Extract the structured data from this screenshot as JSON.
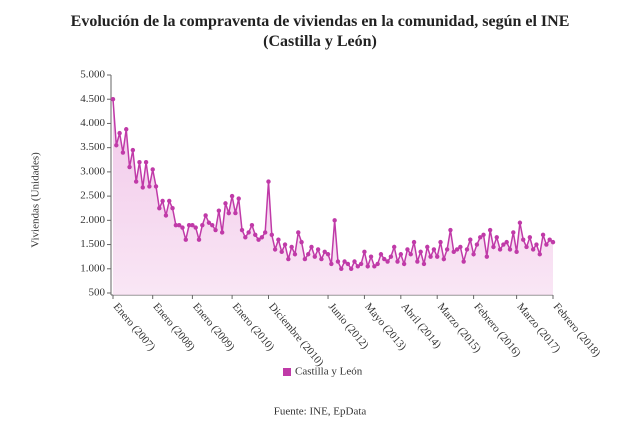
{
  "chart_data": {
    "type": "line",
    "title": "Evolución de la compraventa de viviendas en la comunidad, según el INE (Castilla y León)",
    "y_label": "Viviendas (Unidades)",
    "source": "Fuente: INE, EpData",
    "categories": [
      "Enero (2007)",
      null,
      null,
      null,
      null,
      null,
      null,
      null,
      null,
      null,
      null,
      null,
      "Enero (2008)",
      null,
      null,
      null,
      null,
      null,
      null,
      null,
      null,
      null,
      null,
      null,
      "Enero (2009)",
      null,
      null,
      null,
      null,
      null,
      null,
      null,
      null,
      null,
      null,
      null,
      "Enero (2010)",
      null,
      null,
      null,
      null,
      null,
      null,
      null,
      null,
      null,
      null,
      "Diciembre (2010)",
      null,
      null,
      null,
      null,
      null,
      null,
      null,
      null,
      null,
      null,
      null,
      null,
      null,
      null,
      null,
      null,
      null,
      "Junio (2012)",
      null,
      null,
      null,
      null,
      null,
      null,
      null,
      null,
      null,
      null,
      "Mayo (2013)",
      null,
      null,
      null,
      null,
      null,
      null,
      null,
      null,
      null,
      null,
      "Abril (2014)",
      null,
      null,
      null,
      null,
      null,
      null,
      null,
      null,
      null,
      null,
      "Marzo (2015)",
      null,
      null,
      null,
      null,
      null,
      null,
      null,
      null,
      null,
      null,
      "Febrero (2016)",
      null,
      null,
      null,
      null,
      null,
      null,
      null,
      null,
      null,
      null,
      null,
      null,
      "Marzo (2017)",
      null,
      null,
      null,
      null,
      null,
      null,
      null,
      null,
      null,
      null,
      "Febrero (2018)"
    ],
    "series": [
      {
        "name": "Castilla y León",
        "color": "#c03aa8",
        "values": [
          4500,
          3550,
          3800,
          3400,
          3880,
          3100,
          3450,
          2800,
          3200,
          2680,
          3200,
          2700,
          3050,
          2700,
          2250,
          2400,
          2100,
          2400,
          2250,
          1900,
          1900,
          1850,
          1600,
          1900,
          1900,
          1850,
          1600,
          1900,
          2100,
          1950,
          1900,
          1800,
          2200,
          1750,
          2350,
          2150,
          2500,
          2150,
          2450,
          1800,
          1650,
          1750,
          1900,
          1700,
          1600,
          1650,
          1750,
          2800,
          1700,
          1400,
          1600,
          1350,
          1500,
          1200,
          1450,
          1300,
          1750,
          1550,
          1200,
          1300,
          1450,
          1250,
          1400,
          1200,
          1350,
          1300,
          1100,
          2000,
          1150,
          1000,
          1150,
          1100,
          1000,
          1150,
          1050,
          1100,
          1350,
          1050,
          1250,
          1050,
          1100,
          1300,
          1200,
          1150,
          1250,
          1450,
          1150,
          1300,
          1100,
          1400,
          1300,
          1550,
          1150,
          1350,
          1100,
          1450,
          1250,
          1400,
          1250,
          1550,
          1200,
          1400,
          1800,
          1350,
          1400,
          1450,
          1150,
          1400,
          1600,
          1300,
          1500,
          1650,
          1700,
          1250,
          1800,
          1450,
          1650,
          1400,
          1500,
          1550,
          1400,
          1750,
          1350,
          1950,
          1600,
          1450,
          1650,
          1400,
          1500,
          1300,
          1700,
          1500,
          1600,
          1550
        ]
      }
    ],
    "ylim": [
      500,
      5000
    ],
    "yticks": [
      500,
      {
        "value": 1000,
        "label": "1.000"
      },
      {
        "value": 1500,
        "label": "1.500"
      },
      {
        "value": 2000,
        "label": "2.000"
      },
      {
        "value": 2500,
        "label": "2.500"
      },
      {
        "value": 3000,
        "label": "3.000"
      },
      {
        "value": 3500,
        "label": "3.500"
      },
      {
        "value": 4000,
        "label": "4.000"
      },
      {
        "value": 4500,
        "label": "4.500"
      },
      {
        "value": 5000,
        "label": "5.000"
      }
    ],
    "grid": false,
    "legend": "bottom"
  }
}
